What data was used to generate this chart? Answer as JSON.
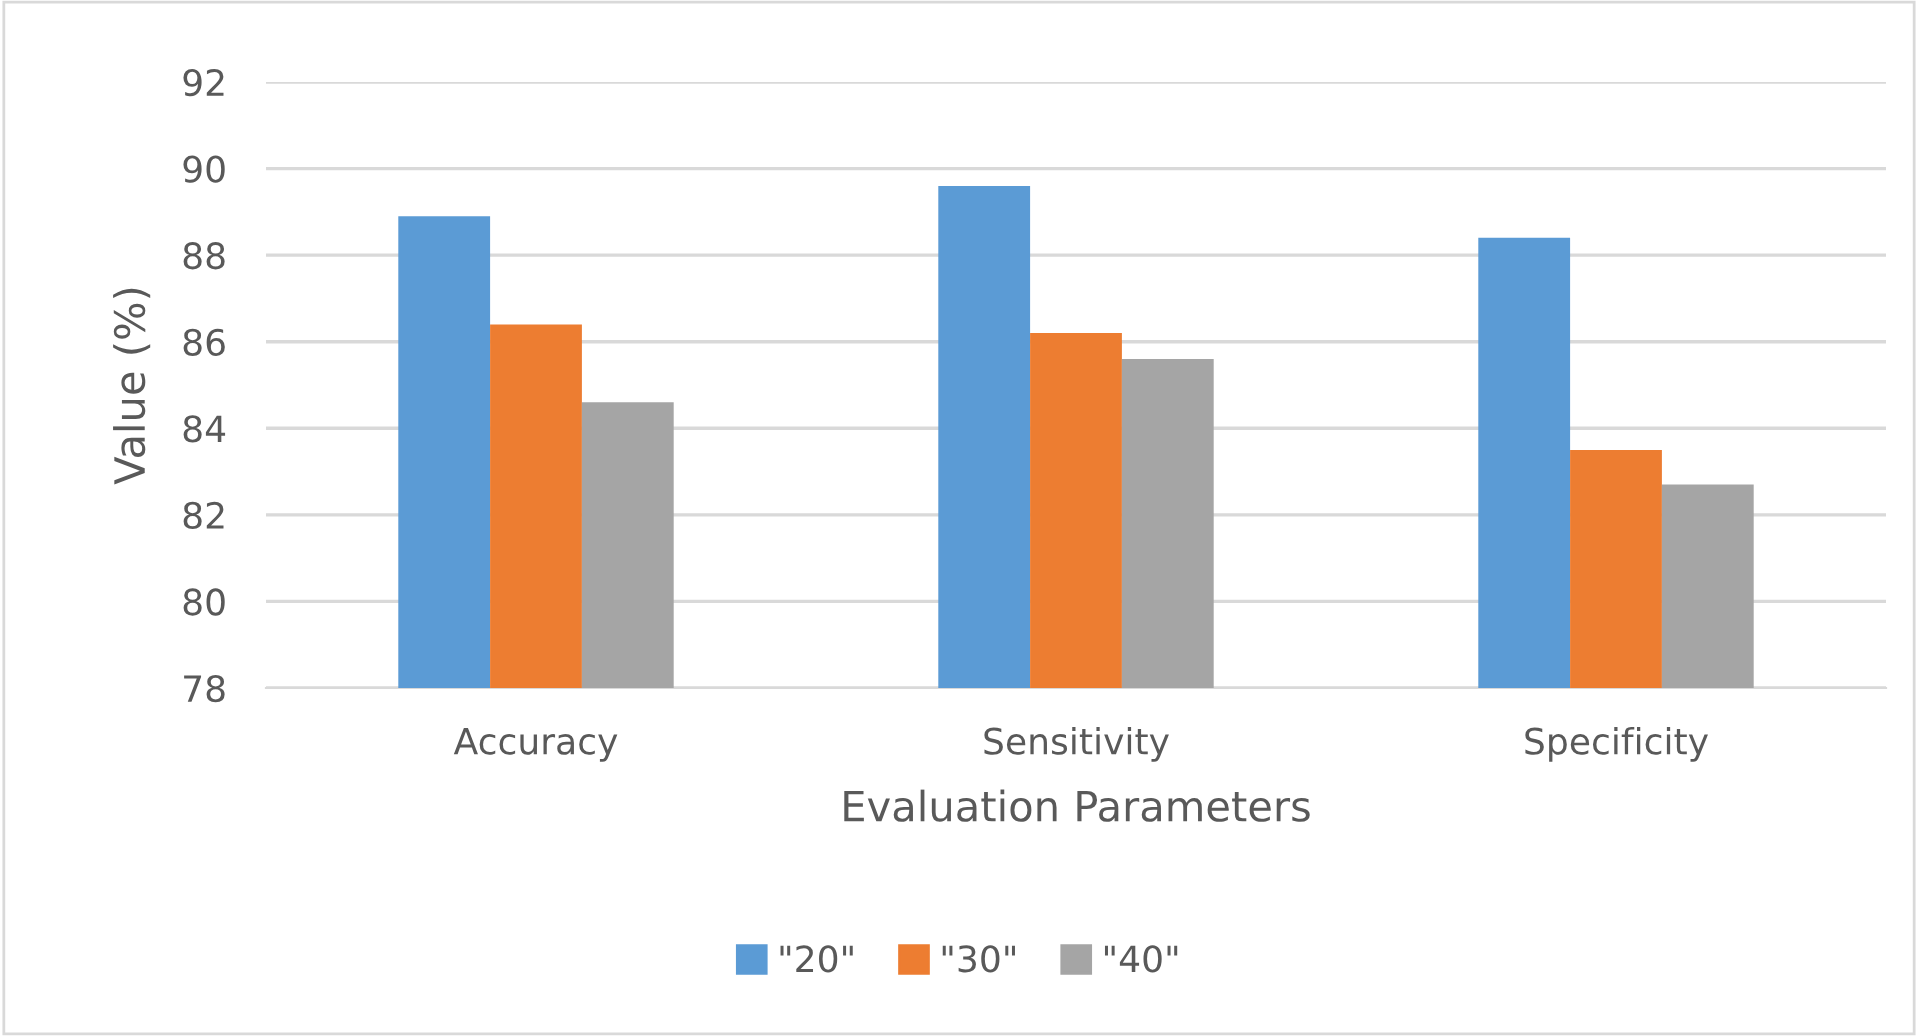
{
  "chart_data": {
    "type": "bar",
    "xlabel": "Evaluation Parameters",
    "ylabel": "Value (%)",
    "categories": [
      "Accuracy",
      "Sensitivity",
      "Specificity"
    ],
    "series": [
      {
        "name": "\"20\"",
        "color": "#5b9bd5",
        "values": [
          88.9,
          89.6,
          88.4
        ]
      },
      {
        "name": "\"30\"",
        "color": "#ed7d31",
        "values": [
          86.4,
          86.2,
          83.5
        ]
      },
      {
        "name": "\"40\"",
        "color": "#a5a5a5",
        "values": [
          84.6,
          85.6,
          82.7
        ]
      }
    ],
    "ylim": [
      78,
      92
    ],
    "yticks": [
      78,
      80,
      82,
      84,
      86,
      88,
      90,
      92
    ],
    "grid": "y",
    "legend": "bottom"
  }
}
